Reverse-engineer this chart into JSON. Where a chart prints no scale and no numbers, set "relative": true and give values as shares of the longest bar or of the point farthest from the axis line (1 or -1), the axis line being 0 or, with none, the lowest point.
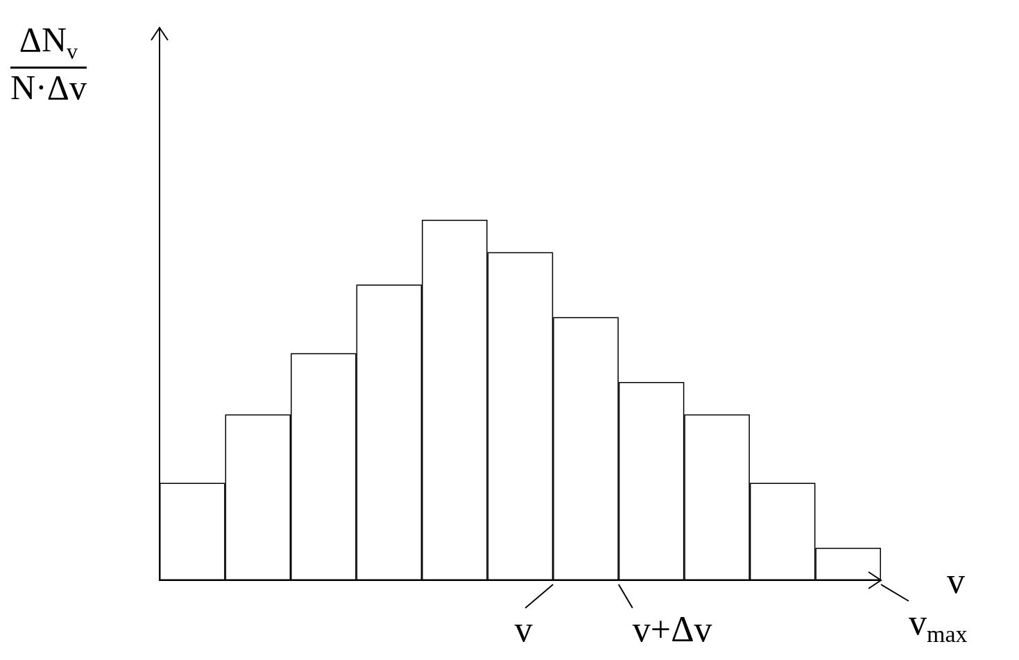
{
  "chart_data": {
    "type": "bar",
    "relative": true,
    "ylabel": "ΔN$_{v}$\nN·Δv",
    "xlabel": "v",
    "categories": [
      null,
      null,
      null,
      null,
      null,
      null,
      null,
      null,
      null,
      null,
      null
    ],
    "values": [
      0.27,
      0.46,
      0.63,
      0.82,
      1,
      0.91,
      0.73,
      0.55,
      0.46,
      0.27,
      0.09
    ],
    "color": "#ffffff",
    "grid": false,
    "annotations": [
      "v",
      "v+Δv",
      "v$_{max}$"
    ]
  }
}
